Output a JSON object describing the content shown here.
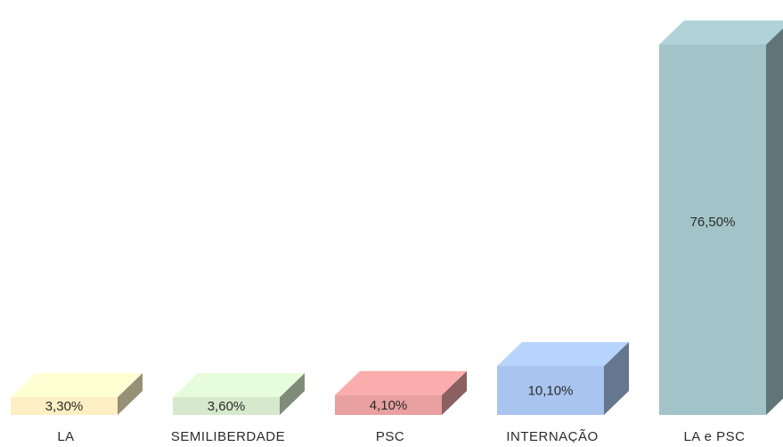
{
  "chart_data": {
    "type": "bar",
    "style": "3d-columns",
    "categories": [
      "LA",
      "SEMILIBERDADE",
      "PSC",
      "INTERNAÇÃO",
      "LA e PSC"
    ],
    "values": [
      3.3,
      3.6,
      4.1,
      10.1,
      76.5
    ],
    "value_labels": [
      "3,30%",
      "3,60%",
      "4,10%",
      "10,10%",
      "76,50%"
    ],
    "colors": [
      "#fcefc4",
      "#d6e9cc",
      "#e8a0a0",
      "#a9c4ef",
      "#a2c3c8"
    ],
    "ylim": [
      0,
      80
    ],
    "grid": false,
    "legend": "none"
  }
}
